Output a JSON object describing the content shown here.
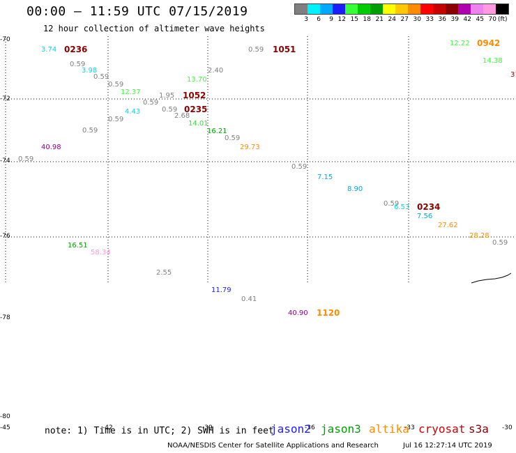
{
  "header": {
    "title": "00:00 – 11:59 UTC 07/15/2019",
    "subtitle": "12 hour collection of altimeter wave heights"
  },
  "color_scale": {
    "unit": "(ft)",
    "bins": [
      {
        "label": "3",
        "color": "#7f7f7f"
      },
      {
        "label": "6",
        "color": "#00f0ff"
      },
      {
        "label": "9",
        "color": "#00a8ff"
      },
      {
        "label": "12",
        "color": "#1c1cff"
      },
      {
        "label": "15",
        "color": "#37ff37"
      },
      {
        "label": "18",
        "color": "#00cc00"
      },
      {
        "label": "21",
        "color": "#00a000"
      },
      {
        "label": "24",
        "color": "#ffff00"
      },
      {
        "label": "27",
        "color": "#ffc800"
      },
      {
        "label": "30",
        "color": "#ff8c00"
      },
      {
        "label": "33",
        "color": "#ff0000"
      },
      {
        "label": "36",
        "color": "#c80000"
      },
      {
        "label": "39",
        "color": "#8b0000"
      },
      {
        "label": "42",
        "color": "#b000b0"
      },
      {
        "label": "45",
        "color": "#ee82ee"
      },
      {
        "label": "70",
        "color": "#ff99e0"
      },
      {
        "label": "",
        "color": "#000000"
      }
    ]
  },
  "axes": {
    "lat_labels": [
      "-70",
      "-72",
      "-74",
      "-76",
      "-78",
      "-80"
    ],
    "lon_labels": [
      "-45",
      "-42",
      "-39",
      "-36",
      "-33",
      "-30"
    ]
  },
  "observations": [
    {
      "text": "3.74",
      "color": "#00d8e8",
      "kind": "value"
    },
    {
      "text": "0236",
      "color": "#8b0000",
      "kind": "time"
    },
    {
      "text": "0.59",
      "color": "#7f7f7f",
      "kind": "value"
    },
    {
      "text": "3.98",
      "color": "#00d8e8",
      "kind": "value"
    },
    {
      "text": "0.59",
      "color": "#7f7f7f",
      "kind": "value"
    },
    {
      "text": "0.59",
      "color": "#7f7f7f",
      "kind": "value"
    },
    {
      "text": "12.37",
      "color": "#37ff37",
      "kind": "value"
    },
    {
      "text": "1.95",
      "color": "#7f7f7f",
      "kind": "value"
    },
    {
      "text": "1052",
      "color": "#8b0000",
      "kind": "time"
    },
    {
      "text": "0.59",
      "color": "#7f7f7f",
      "kind": "value"
    },
    {
      "text": "4.43",
      "color": "#00d8e8",
      "kind": "value"
    },
    {
      "text": "0.59",
      "color": "#7f7f7f",
      "kind": "value"
    },
    {
      "text": "0.59",
      "color": "#7f7f7f",
      "kind": "value"
    },
    {
      "text": "0235",
      "color": "#8b0000",
      "kind": "time"
    },
    {
      "text": "0.59",
      "color": "#7f7f7f",
      "kind": "value"
    },
    {
      "text": "2.68",
      "color": "#7f7f7f",
      "kind": "value"
    },
    {
      "text": "14.01",
      "color": "#37dd37",
      "kind": "value"
    },
    {
      "text": "0.59",
      "color": "#7f7f7f",
      "kind": "value"
    },
    {
      "text": "16.21",
      "color": "#00a000",
      "kind": "value"
    },
    {
      "text": "0.59",
      "color": "#7f7f7f",
      "kind": "value"
    },
    {
      "text": "29.73",
      "color": "#ff8c00",
      "kind": "value"
    },
    {
      "text": "13.70",
      "color": "#37ff37",
      "kind": "value"
    },
    {
      "text": "2.40",
      "color": "#7f7f7f",
      "kind": "value"
    },
    {
      "text": "0.59",
      "color": "#7f7f7f",
      "kind": "value"
    },
    {
      "text": "1051",
      "color": "#8b0000",
      "kind": "time"
    },
    {
      "text": "40.98",
      "color": "#8b008b",
      "kind": "value"
    },
    {
      "text": "0.59",
      "color": "#7f7f7f",
      "kind": "value"
    },
    {
      "text": "0.59",
      "color": "#7f7f7f",
      "kind": "value"
    },
    {
      "text": "7.15",
      "color": "#00a8d8",
      "kind": "value"
    },
    {
      "text": "8.90",
      "color": "#00a8d8",
      "kind": "value"
    },
    {
      "text": "0.59",
      "color": "#7f7f7f",
      "kind": "value"
    },
    {
      "text": "6.53",
      "color": "#00d8e8",
      "kind": "value"
    },
    {
      "text": "0234",
      "color": "#8b0000",
      "kind": "time"
    },
    {
      "text": "7.56",
      "color": "#00a8d8",
      "kind": "value"
    },
    {
      "text": "27.62",
      "color": "#ff8c00",
      "kind": "value"
    },
    {
      "text": "28.28",
      "color": "#ff8c00",
      "kind": "value"
    },
    {
      "text": "0.59",
      "color": "#7f7f7f",
      "kind": "value"
    },
    {
      "text": "12.22",
      "color": "#37ff37",
      "kind": "value"
    },
    {
      "text": "0942",
      "color": "#ff8c00",
      "kind": "time"
    },
    {
      "text": "14.38",
      "color": "#37ff37",
      "kind": "value"
    },
    {
      "text": "31",
      "color": "#8b0000",
      "kind": "value"
    },
    {
      "text": "16.51",
      "color": "#00a000",
      "kind": "value"
    },
    {
      "text": "58.34",
      "color": "#ff99e0",
      "kind": "value"
    },
    {
      "text": "2.55",
      "color": "#7f7f7f",
      "kind": "value"
    },
    {
      "text": "11.79",
      "color": "#1c1cff",
      "kind": "value"
    },
    {
      "text": "0.41",
      "color": "#7f7f7f",
      "kind": "value"
    },
    {
      "text": "40.90",
      "color": "#8b008b",
      "kind": "value"
    },
    {
      "text": "1120",
      "color": "#ff8c00",
      "kind": "time"
    }
  ],
  "footer": {
    "note": "note: 1) Time is in UTC; 2) SWH is in feet",
    "satellites": [
      {
        "name": "jason2",
        "color": "#1c1cff"
      },
      {
        "name": "jason3",
        "color": "#00a000"
      },
      {
        "name": "altika",
        "color": "#ff8c00"
      },
      {
        "name": "cryosat",
        "color": "#d00000"
      },
      {
        "name": "s3a",
        "color": "#8b0000"
      }
    ],
    "credit": "NOAA/NESDIS Center for Satellite Applications and Research",
    "timestamp": "Jul 16 12:27:14 UTC 2019"
  }
}
